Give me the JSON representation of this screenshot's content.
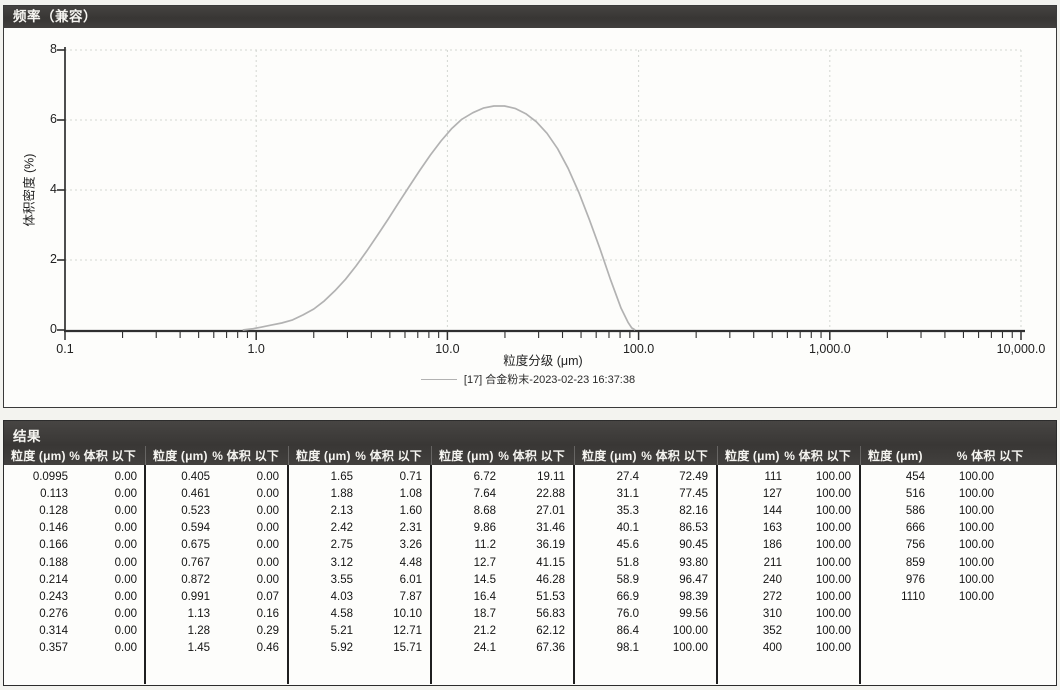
{
  "chart_panel": {
    "title": "频率（兼容）"
  },
  "chart_data": {
    "type": "line",
    "title": "频率（兼容）",
    "xlabel": "粒度分级 (μm)",
    "ylabel": "体积密度 (%)",
    "x_scale": "log",
    "xlim": [
      0.1,
      10000
    ],
    "ylim": [
      0,
      8
    ],
    "x_ticks": [
      "0.1",
      "1.0",
      "10.0",
      "100.0",
      "1,000.0",
      "10,000.0"
    ],
    "x_tick_values": [
      0.1,
      1,
      10,
      100,
      1000,
      10000
    ],
    "y_ticks": [
      "8",
      "6",
      "4",
      "2",
      "0"
    ],
    "y_tick_values": [
      8,
      6,
      4,
      2,
      0
    ],
    "grid": true,
    "legend_position": "bottom-center",
    "series": [
      {
        "name": "[17] 合金粉末-2023-02-23 16:37:38",
        "color": "#b2b2b2",
        "x": [
          0.85,
          0.95,
          1.06,
          1.2,
          1.36,
          1.55,
          1.76,
          2.0,
          2.27,
          2.58,
          2.93,
          3.33,
          3.78,
          4.3,
          4.89,
          5.55,
          6.31,
          7.17,
          8.15,
          9.26,
          10.5,
          11.9,
          13.6,
          15.4,
          17.5,
          19.9,
          22.6,
          25.7,
          29.2,
          33.2,
          37.7,
          42.8,
          48.6,
          55.2,
          62.8,
          71.3,
          81.0,
          88.0,
          92.0,
          96.0
        ],
        "y": [
          0.0,
          0.03,
          0.08,
          0.14,
          0.2,
          0.29,
          0.43,
          0.6,
          0.83,
          1.12,
          1.45,
          1.83,
          2.25,
          2.7,
          3.16,
          3.63,
          4.1,
          4.56,
          5.0,
          5.4,
          5.75,
          6.02,
          6.21,
          6.34,
          6.4,
          6.4,
          6.33,
          6.18,
          5.95,
          5.62,
          5.18,
          4.62,
          3.94,
          3.16,
          2.32,
          1.44,
          0.62,
          0.22,
          0.06,
          0.0
        ]
      }
    ]
  },
  "results": {
    "title": "结果",
    "col_size": "粒度 (μm)",
    "col_pct": "% 体积 以下",
    "groups": [
      [
        [
          "0.0995",
          "0.00"
        ],
        [
          "0.113",
          "0.00"
        ],
        [
          "0.128",
          "0.00"
        ],
        [
          "0.146",
          "0.00"
        ],
        [
          "0.166",
          "0.00"
        ],
        [
          "0.188",
          "0.00"
        ],
        [
          "0.214",
          "0.00"
        ],
        [
          "0.243",
          "0.00"
        ],
        [
          "0.276",
          "0.00"
        ],
        [
          "0.314",
          "0.00"
        ],
        [
          "0.357",
          "0.00"
        ]
      ],
      [
        [
          "0.405",
          "0.00"
        ],
        [
          "0.461",
          "0.00"
        ],
        [
          "0.523",
          "0.00"
        ],
        [
          "0.594",
          "0.00"
        ],
        [
          "0.675",
          "0.00"
        ],
        [
          "0.767",
          "0.00"
        ],
        [
          "0.872",
          "0.00"
        ],
        [
          "0.991",
          "0.07"
        ],
        [
          "1.13",
          "0.16"
        ],
        [
          "1.28",
          "0.29"
        ],
        [
          "1.45",
          "0.46"
        ]
      ],
      [
        [
          "1.65",
          "0.71"
        ],
        [
          "1.88",
          "1.08"
        ],
        [
          "2.13",
          "1.60"
        ],
        [
          "2.42",
          "2.31"
        ],
        [
          "2.75",
          "3.26"
        ],
        [
          "3.12",
          "4.48"
        ],
        [
          "3.55",
          "6.01"
        ],
        [
          "4.03",
          "7.87"
        ],
        [
          "4.58",
          "10.10"
        ],
        [
          "5.21",
          "12.71"
        ],
        [
          "5.92",
          "15.71"
        ]
      ],
      [
        [
          "6.72",
          "19.11"
        ],
        [
          "7.64",
          "22.88"
        ],
        [
          "8.68",
          "27.01"
        ],
        [
          "9.86",
          "31.46"
        ],
        [
          "11.2",
          "36.19"
        ],
        [
          "12.7",
          "41.15"
        ],
        [
          "14.5",
          "46.28"
        ],
        [
          "16.4",
          "51.53"
        ],
        [
          "18.7",
          "56.83"
        ],
        [
          "21.2",
          "62.12"
        ],
        [
          "24.1",
          "67.36"
        ]
      ],
      [
        [
          "27.4",
          "72.49"
        ],
        [
          "31.1",
          "77.45"
        ],
        [
          "35.3",
          "82.16"
        ],
        [
          "40.1",
          "86.53"
        ],
        [
          "45.6",
          "90.45"
        ],
        [
          "51.8",
          "93.80"
        ],
        [
          "58.9",
          "96.47"
        ],
        [
          "66.9",
          "98.39"
        ],
        [
          "76.0",
          "99.56"
        ],
        [
          "86.4",
          "100.00"
        ],
        [
          "98.1",
          "100.00"
        ]
      ],
      [
        [
          "111",
          "100.00"
        ],
        [
          "127",
          "100.00"
        ],
        [
          "144",
          "100.00"
        ],
        [
          "163",
          "100.00"
        ],
        [
          "186",
          "100.00"
        ],
        [
          "211",
          "100.00"
        ],
        [
          "240",
          "100.00"
        ],
        [
          "272",
          "100.00"
        ],
        [
          "310",
          "100.00"
        ],
        [
          "352",
          "100.00"
        ],
        [
          "400",
          "100.00"
        ]
      ],
      [
        [
          "454",
          "100.00"
        ],
        [
          "516",
          "100.00"
        ],
        [
          "586",
          "100.00"
        ],
        [
          "666",
          "100.00"
        ],
        [
          "756",
          "100.00"
        ],
        [
          "859",
          "100.00"
        ],
        [
          "976",
          "100.00"
        ],
        [
          "1110",
          "100.00"
        ]
      ]
    ]
  }
}
